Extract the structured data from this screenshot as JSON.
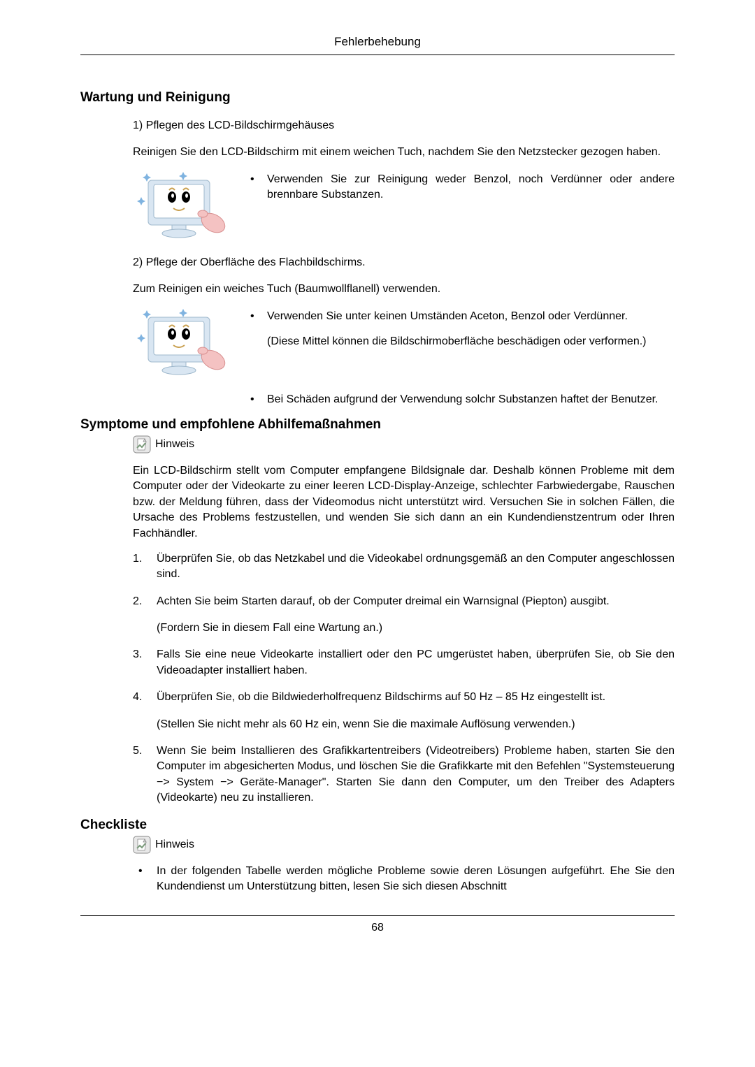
{
  "page": {
    "header": "Fehlerbehebung",
    "footer": "68"
  },
  "section1": {
    "heading": "Wartung und Reinigung",
    "line1": "1) Pflegen des LCD-Bildschirmgehäuses",
    "line2": "Reinigen Sie den LCD-Bildschirm mit einem weichen Tuch, nachdem Sie den Netzstecker gezogen haben.",
    "bullet1": "Verwenden Sie zur Reinigung weder Benzol, noch Verdünner oder andere brennbare Substanzen.",
    "line3": "2) Pflege der Oberfläche des Flachbildschirms.",
    "line4": "Zum Reinigen ein weiches Tuch (Baumwollflanell) verwenden.",
    "bullet2a": "Verwenden Sie unter keinen Umständen Aceton, Benzol oder Verdünner.",
    "bullet2b": "(Diese Mittel können die Bildschirmoberfläche beschädigen oder verformen.)",
    "bullet2c": "Bei Schäden aufgrund der Verwendung solchr Substanzen haftet der Benutzer."
  },
  "section2": {
    "heading": "Symptome und empfohlene Abhilfemaßnahmen",
    "hinweis": "Hinweis",
    "intro": "Ein LCD-Bildschirm stellt vom Computer empfangene Bildsignale dar. Deshalb können Probleme mit dem Computer oder der Videokarte zu einer leeren LCD-Display-Anzeige, schlechter Farbwiedergabe, Rauschen bzw. der Meldung führen, dass der Videomodus nicht unterstützt wird. Versuchen Sie in solchen Fällen, die Ursache des Problems festzustellen, und wenden Sie sich dann an ein Kundendienstzentrum oder Ihren Fachhändler.",
    "items": [
      {
        "num": "1.",
        "text": "Überprüfen Sie, ob das Netzkabel und die Videokabel ordnungsgemäß an den Computer angeschlossen sind."
      },
      {
        "num": "2.",
        "text": "Achten Sie beim Starten darauf, ob der Computer dreimal ein Warnsignal (Piepton) ausgibt.",
        "sub": "(Fordern Sie in diesem Fall eine Wartung an.)"
      },
      {
        "num": "3.",
        "text": "Falls Sie eine neue Videokarte installiert oder den PC umgerüstet haben, überprüfen Sie, ob Sie den Videoadapter installiert haben."
      },
      {
        "num": "4.",
        "text": "Überprüfen Sie, ob die Bildwiederholfrequenz Bildschirms auf 50 Hz – 85 Hz eingestellt ist.",
        "sub": "(Stellen Sie nicht mehr als 60 Hz ein, wenn Sie die maximale Auflösung verwenden.)"
      },
      {
        "num": "5.",
        "text": "Wenn Sie beim Installieren des Grafikkartentreibers (Videotreibers) Probleme haben, starten Sie den Computer im abgesicherten Modus, und löschen Sie die Grafikkarte mit den Befehlen \"Systemsteuerung −> System −> Geräte-Manager\". Starten Sie dann den Computer, um den Treiber des Adapters (Videokarte) neu zu installieren."
      }
    ]
  },
  "section3": {
    "heading": "Checkliste",
    "hinweis": "Hinweis",
    "bullet": "In der folgenden Tabelle werden mögliche Probleme sowie deren Lösungen aufgeführt. Ehe Sie den Kundendienst um Unterstützung bitten, lesen Sie sich diesen Abschnitt"
  },
  "colors": {
    "monitor_outer": "#d9e6f2",
    "monitor_inner": "#e6f0f9",
    "monitor_screen": "#ffffff",
    "monitor_face": "#ffd966",
    "sparkle": "#7fb3e0",
    "hand": "#f4c2c2",
    "icon_bg": "#c8c8c8",
    "icon_inner": "#e8e8e8",
    "icon_check": "#888888"
  }
}
